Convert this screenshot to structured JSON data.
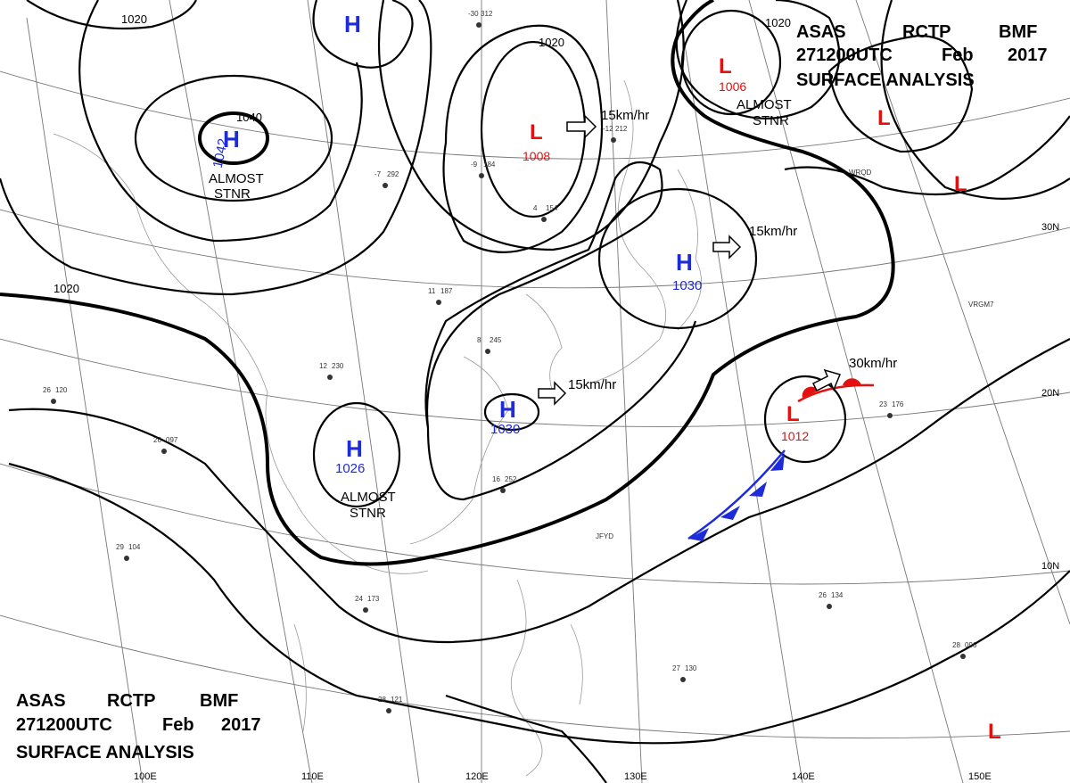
{
  "title_top": {
    "line1": [
      "ASAS",
      "RCTP",
      "BMF"
    ],
    "line2": [
      "271200UTC",
      "Feb",
      "2017"
    ],
    "line3": "SURFACE ANALYSIS"
  },
  "title_bottom": {
    "line1": [
      "ASAS",
      "RCTP",
      "BMF"
    ],
    "line2": [
      "271200UTC",
      "Feb",
      "2017"
    ],
    "line3": "SURFACE ANALYSIS"
  },
  "high_symbol": "H",
  "low_symbol": "L",
  "highs": [
    {
      "pressure": "1042",
      "note": [
        "ALMOST",
        "STNR"
      ]
    },
    {
      "pressure": "1030"
    },
    {
      "pressure": "1030"
    },
    {
      "pressure": "1026",
      "note": [
        "ALMOST",
        "STNR"
      ]
    },
    {
      "pressure": ""
    }
  ],
  "lows": [
    {
      "pressure": "1008"
    },
    {
      "pressure": "1006",
      "note": [
        "ALMOST",
        "STNR"
      ]
    },
    {
      "pressure": "1012"
    },
    {
      "pressure": ""
    },
    {
      "pressure": ""
    },
    {
      "pressure": ""
    }
  ],
  "isobar_labels": [
    "1040",
    "1020",
    "1020",
    "1020",
    "1020"
  ],
  "motion_labels": [
    "15km/hr",
    "15km/hr",
    "15km/hr",
    "30km/hr"
  ],
  "lat_labels": [
    "30N",
    "20N",
    "10N"
  ],
  "lon_labels": [
    "100E",
    "110E",
    "120E",
    "130E",
    "140E",
    "150E"
  ],
  "station_samples": [
    {
      "t": "-30",
      "p": "312"
    },
    {
      "t": "-7",
      "p": "292"
    },
    {
      "t": "-9",
      "p": "184"
    },
    {
      "t": "-12",
      "p": "212"
    },
    {
      "t": "4",
      "p": "154"
    },
    {
      "t": "11",
      "p": "187"
    },
    {
      "t": "8",
      "p": "245"
    },
    {
      "t": "12",
      "p": "230"
    },
    {
      "t": "16",
      "p": "252"
    },
    {
      "t": "26",
      "p": "120"
    },
    {
      "t": "26",
      "p": "097"
    },
    {
      "t": "29",
      "p": "104"
    },
    {
      "t": "24",
      "p": "173"
    },
    {
      "t": "28",
      "p": "121"
    },
    {
      "t": "27",
      "p": "130"
    },
    {
      "t": "26",
      "p": "134"
    },
    {
      "t": "23",
      "p": "176"
    },
    {
      "t": "28",
      "p": "096"
    }
  ],
  "station_ids": [
    "VRGM7",
    "JFYD",
    "WRQD"
  ]
}
